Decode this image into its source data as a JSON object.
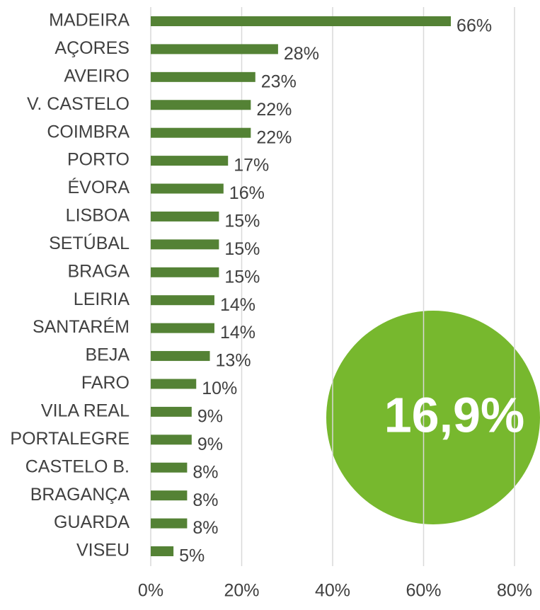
{
  "chart_data": {
    "type": "bar",
    "orientation": "horizontal",
    "categories": [
      "MADEIRA",
      "AÇORES",
      "AVEIRO",
      "V. CASTELO",
      "COIMBRA",
      "PORTO",
      "ÉVORA",
      "LISBOA",
      "SETÚBAL",
      "BRAGA",
      "LEIRIA",
      "SANTARÉM",
      "BEJA",
      "FARO",
      "VILA REAL",
      "PORTALEGRE",
      "CASTELO B.",
      "BRAGANÇA",
      "GUARDA",
      "VISEU"
    ],
    "values": [
      66,
      28,
      23,
      22,
      22,
      17,
      16,
      15,
      15,
      15,
      14,
      14,
      13,
      10,
      9,
      9,
      8,
      8,
      8,
      5
    ],
    "value_labels": [
      "66%",
      "28%",
      "23%",
      "22%",
      "22%",
      "17%",
      "16%",
      "15%",
      "15%",
      "15%",
      "14%",
      "14%",
      "13%",
      "10%",
      "9%",
      "9%",
      "8%",
      "8%",
      "8%",
      "5%"
    ],
    "color": "#548235",
    "xlim": [
      0,
      80
    ],
    "xticks": [
      {
        "value": 0,
        "label": "0%"
      },
      {
        "value": 20,
        "label": "20%"
      },
      {
        "value": 40,
        "label": "40%"
      },
      {
        "value": 60,
        "label": "60%"
      },
      {
        "value": 80,
        "label": "80%"
      }
    ],
    "grid": true,
    "annotation": {
      "text": "16,9%",
      "color": "#77b82e"
    }
  }
}
